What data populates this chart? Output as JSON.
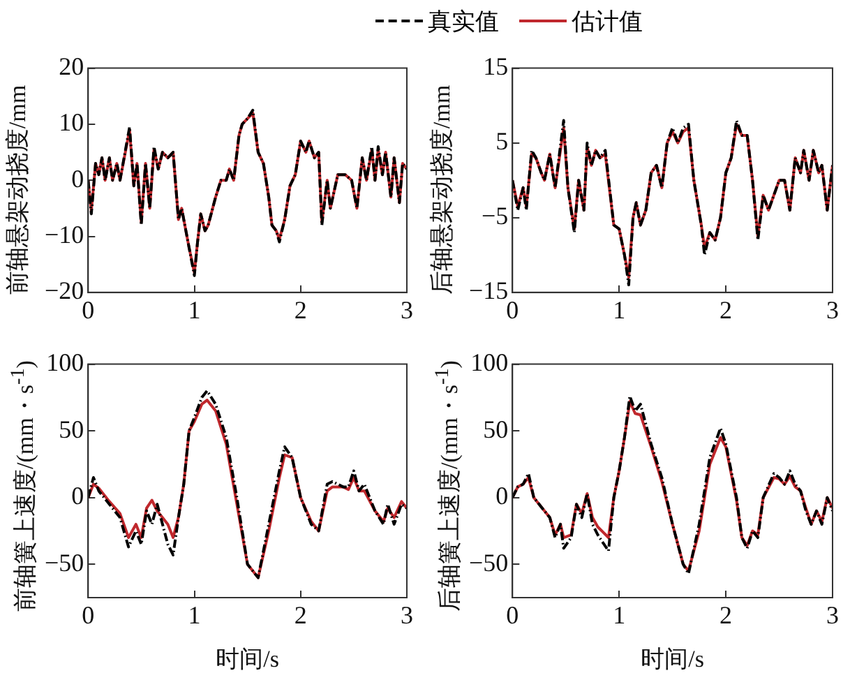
{
  "chart_data": [
    {
      "type": "line",
      "ylabel": "前轴悬架动挠度/mm",
      "xlim": [
        0,
        3
      ],
      "xticks": [
        0,
        1,
        2,
        3
      ],
      "ylim": [
        -20,
        20
      ],
      "yticks": [
        -20,
        -10,
        0,
        10,
        20
      ],
      "grid": false,
      "legend": "top",
      "marker": "none",
      "series": [
        {
          "name": "真实值",
          "color": "#000000",
          "line_style": "dashed",
          "x": [
            0,
            0.03,
            0.07,
            0.1,
            0.13,
            0.16,
            0.2,
            0.23,
            0.27,
            0.3,
            0.39,
            0.43,
            0.46,
            0.5,
            0.54,
            0.58,
            0.62,
            0.66,
            0.7,
            0.75,
            0.8,
            0.85,
            0.88,
            0.95,
            1.0,
            1.03,
            1.06,
            1.1,
            1.13,
            1.2,
            1.25,
            1.3,
            1.33,
            1.37,
            1.42,
            1.45,
            1.5,
            1.55,
            1.6,
            1.65,
            1.7,
            1.73,
            1.77,
            1.8,
            1.85,
            1.9,
            1.95,
            2.0,
            2.05,
            2.08,
            2.13,
            2.17,
            2.2,
            2.25,
            2.28,
            2.35,
            2.42,
            2.48,
            2.53,
            2.58,
            2.62,
            2.67,
            2.7,
            2.73,
            2.77,
            2.8,
            2.85,
            2.88,
            2.93,
            2.96,
            3.0
          ],
          "values": [
            0,
            -6,
            3,
            1,
            4,
            0,
            4,
            0,
            3,
            0,
            9.5,
            -1,
            3,
            -8,
            3,
            -5,
            6,
            2,
            5,
            4,
            5,
            -7,
            -5,
            -12,
            -17,
            -11,
            -6,
            -9,
            -8,
            -3,
            0,
            0,
            2,
            0,
            8,
            10,
            11,
            12.5,
            5,
            3,
            -3,
            -8,
            -9,
            -11,
            -7,
            -1,
            1,
            7,
            5,
            7,
            4,
            5,
            -8,
            0,
            -5,
            1,
            1,
            0,
            -5,
            4,
            0,
            6,
            0,
            6,
            1,
            5,
            -3,
            4,
            -4,
            3,
            2
          ]
        },
        {
          "name": "估计值",
          "color": "#c0282d",
          "line_style": "solid",
          "x": [
            0,
            0.03,
            0.07,
            0.1,
            0.13,
            0.16,
            0.2,
            0.23,
            0.27,
            0.3,
            0.39,
            0.43,
            0.46,
            0.5,
            0.54,
            0.58,
            0.62,
            0.66,
            0.7,
            0.75,
            0.8,
            0.85,
            0.88,
            0.95,
            1.0,
            1.03,
            1.06,
            1.1,
            1.13,
            1.2,
            1.25,
            1.3,
            1.33,
            1.37,
            1.42,
            1.45,
            1.5,
            1.55,
            1.6,
            1.65,
            1.7,
            1.73,
            1.77,
            1.8,
            1.85,
            1.9,
            1.95,
            2.0,
            2.05,
            2.08,
            2.13,
            2.17,
            2.2,
            2.25,
            2.28,
            2.35,
            2.42,
            2.48,
            2.53,
            2.58,
            2.62,
            2.67,
            2.7,
            2.73,
            2.77,
            2.8,
            2.85,
            2.88,
            2.93,
            2.96,
            3.0
          ],
          "values": [
            0,
            -5.5,
            3,
            1,
            4,
            0,
            4,
            0,
            3,
            0,
            9,
            -1,
            3,
            -7.5,
            3,
            -5,
            5.5,
            2,
            5,
            4,
            5,
            -7,
            -5,
            -12,
            -16.5,
            -11,
            -6,
            -9,
            -8,
            -3,
            0,
            0,
            2,
            0,
            8,
            10,
            11,
            12,
            5,
            3,
            -3,
            -8,
            -9,
            -10.5,
            -7,
            -1,
            1,
            7,
            5,
            7,
            4,
            5,
            -7.5,
            0,
            -5,
            1,
            1,
            0,
            -5,
            4,
            0,
            5.5,
            0,
            5.5,
            1,
            5,
            -3,
            4,
            -4,
            3,
            2
          ]
        }
      ]
    },
    {
      "type": "line",
      "ylabel": "后轴悬架动挠度/mm",
      "xlim": [
        0,
        3
      ],
      "xticks": [
        0,
        1,
        2,
        3
      ],
      "ylim": [
        -15,
        15
      ],
      "yticks": [
        -15,
        -5,
        5,
        15
      ],
      "grid": false,
      "marker": "none",
      "series": [
        {
          "color": "#000000",
          "line_style": "dashed",
          "x": [
            0,
            0.05,
            0.1,
            0.13,
            0.18,
            0.22,
            0.27,
            0.3,
            0.35,
            0.4,
            0.48,
            0.52,
            0.58,
            0.62,
            0.67,
            0.7,
            0.74,
            0.78,
            0.82,
            0.87,
            0.95,
            1.0,
            1.05,
            1.09,
            1.13,
            1.16,
            1.2,
            1.25,
            1.3,
            1.35,
            1.4,
            1.45,
            1.5,
            1.55,
            1.6,
            1.65,
            1.7,
            1.77,
            1.8,
            1.85,
            1.9,
            1.95,
            2.0,
            2.05,
            2.1,
            2.15,
            2.2,
            2.25,
            2.3,
            2.35,
            2.4,
            2.5,
            2.55,
            2.6,
            2.65,
            2.7,
            2.73,
            2.78,
            2.82,
            2.87,
            2.9,
            2.95,
            3.0
          ],
          "values": [
            0,
            -4,
            -1,
            -4,
            4,
            3,
            1,
            0,
            3.5,
            -1,
            8,
            -1,
            -7,
            0,
            -4,
            5,
            2,
            4,
            3,
            4,
            -6,
            -6.5,
            -10,
            -14,
            -5,
            -3,
            -6,
            -4,
            1,
            2,
            -1,
            5,
            7,
            5,
            7,
            7.5,
            0,
            -6,
            -10,
            -7,
            -8,
            -5,
            1,
            3,
            8,
            6,
            6,
            0,
            -8,
            -2,
            -4,
            0,
            0,
            -4,
            3,
            1,
            4,
            0,
            4,
            1,
            2,
            -4,
            2
          ]
        },
        {
          "color": "#c0282d",
          "line_style": "solid",
          "x": [
            0,
            0.05,
            0.1,
            0.13,
            0.18,
            0.22,
            0.27,
            0.3,
            0.35,
            0.4,
            0.48,
            0.52,
            0.58,
            0.62,
            0.67,
            0.7,
            0.74,
            0.78,
            0.82,
            0.87,
            0.95,
            1.0,
            1.05,
            1.09,
            1.13,
            1.16,
            1.2,
            1.25,
            1.3,
            1.35,
            1.4,
            1.45,
            1.5,
            1.55,
            1.6,
            1.65,
            1.7,
            1.77,
            1.8,
            1.85,
            1.9,
            1.95,
            2.0,
            2.05,
            2.1,
            2.15,
            2.2,
            2.25,
            2.3,
            2.35,
            2.4,
            2.5,
            2.55,
            2.6,
            2.65,
            2.7,
            2.73,
            2.78,
            2.82,
            2.87,
            2.9,
            2.95,
            3.0
          ],
          "values": [
            0,
            -3.5,
            -1,
            -3.5,
            3.5,
            3,
            1,
            0,
            3.5,
            -1,
            7,
            -1,
            -6.5,
            0,
            -4,
            4.5,
            2,
            4,
            3,
            3.5,
            -6,
            -6.5,
            -10,
            -13,
            -5,
            -3,
            -6,
            -4,
            1,
            2,
            -1,
            5,
            6.5,
            5,
            6.5,
            7,
            0,
            -6,
            -9,
            -7,
            -8,
            -5,
            1,
            3,
            7.5,
            6,
            6,
            0,
            -7.5,
            -2,
            -4,
            0,
            0,
            -4,
            3,
            1,
            4,
            0,
            4,
            1,
            2,
            -4,
            2
          ]
        }
      ]
    },
    {
      "type": "line",
      "xlabel": "时间/s",
      "ylabel": "前轴簧上速度/(mm・s$^{-1}$)",
      "xlim": [
        0,
        3
      ],
      "xticks": [
        0,
        1,
        2,
        3
      ],
      "ylim": [
        -75,
        100
      ],
      "yticks": [
        -50,
        0,
        50,
        100
      ],
      "grid": false,
      "marker": "none",
      "series": [
        {
          "color": "#000000",
          "line_style": "dashed",
          "x": [
            0,
            0.05,
            0.1,
            0.2,
            0.3,
            0.38,
            0.45,
            0.5,
            0.55,
            0.6,
            0.65,
            0.75,
            0.8,
            0.85,
            0.9,
            0.95,
            1.0,
            1.07,
            1.12,
            1.2,
            1.3,
            1.4,
            1.5,
            1.6,
            1.7,
            1.8,
            1.85,
            1.92,
            2.0,
            2.1,
            2.17,
            2.25,
            2.3,
            2.4,
            2.45,
            2.5,
            2.55,
            2.6,
            2.7,
            2.78,
            2.82,
            2.88,
            2.95,
            3.0
          ],
          "values": [
            0,
            15,
            5,
            -5,
            -15,
            -37,
            -25,
            -35,
            -10,
            -20,
            -5,
            -35,
            -43,
            -15,
            10,
            50,
            60,
            75,
            80,
            70,
            45,
            0,
            -50,
            -60,
            -20,
            20,
            38,
            30,
            0,
            -20,
            -25,
            10,
            12,
            8,
            8,
            20,
            5,
            10,
            -10,
            -20,
            -5,
            -20,
            -5,
            -8
          ]
        },
        {
          "color": "#c0282d",
          "line_style": "solid",
          "x": [
            0,
            0.05,
            0.1,
            0.2,
            0.3,
            0.38,
            0.45,
            0.5,
            0.55,
            0.6,
            0.65,
            0.75,
            0.8,
            0.85,
            0.9,
            0.95,
            1.0,
            1.07,
            1.12,
            1.2,
            1.3,
            1.4,
            1.5,
            1.6,
            1.7,
            1.8,
            1.85,
            1.92,
            2.0,
            2.1,
            2.17,
            2.25,
            2.3,
            2.4,
            2.45,
            2.5,
            2.55,
            2.6,
            2.7,
            2.78,
            2.82,
            2.88,
            2.95,
            3.0
          ],
          "values": [
            0,
            10,
            7,
            -3,
            -12,
            -30,
            -20,
            -30,
            -8,
            -2,
            -10,
            -20,
            -30,
            -15,
            10,
            50,
            57,
            70,
            73,
            65,
            40,
            -5,
            -50,
            -60,
            -25,
            15,
            32,
            30,
            0,
            -18,
            -25,
            5,
            8,
            8,
            6,
            15,
            5,
            5,
            -10,
            -18,
            -8,
            -15,
            -3,
            -8
          ]
        }
      ]
    },
    {
      "type": "line",
      "xlabel": "时间/s",
      "ylabel": "后轴簧上速度/(mm・s$^{-1}$)",
      "xlim": [
        0,
        3
      ],
      "xticks": [
        0,
        1,
        2,
        3
      ],
      "ylim": [
        -75,
        100
      ],
      "yticks": [
        -50,
        0,
        50,
        100
      ],
      "grid": false,
      "marker": "none",
      "series": [
        {
          "color": "#000000",
          "line_style": "dashed",
          "x": [
            0,
            0.05,
            0.1,
            0.15,
            0.2,
            0.3,
            0.35,
            0.4,
            0.45,
            0.48,
            0.55,
            0.6,
            0.65,
            0.7,
            0.75,
            0.8,
            0.9,
            0.95,
            1.0,
            1.05,
            1.1,
            1.15,
            1.2,
            1.3,
            1.4,
            1.5,
            1.6,
            1.65,
            1.75,
            1.85,
            1.95,
            2.0,
            2.1,
            2.15,
            2.2,
            2.25,
            2.3,
            2.35,
            2.45,
            2.5,
            2.55,
            2.6,
            2.65,
            2.7,
            2.75,
            2.8,
            2.85,
            2.9,
            2.95,
            3.0
          ],
          "values": [
            0,
            8,
            10,
            18,
            0,
            -10,
            -15,
            -30,
            -20,
            -38,
            -30,
            -5,
            -15,
            3,
            -20,
            -28,
            -40,
            0,
            20,
            45,
            76,
            65,
            70,
            40,
            15,
            -20,
            -50,
            -57,
            -20,
            30,
            52,
            40,
            0,
            -30,
            -38,
            -25,
            -30,
            0,
            18,
            15,
            10,
            20,
            10,
            5,
            -10,
            -20,
            -10,
            -20,
            0,
            -10
          ]
        },
        {
          "color": "#c0282d",
          "line_style": "solid",
          "x": [
            0,
            0.05,
            0.1,
            0.15,
            0.2,
            0.3,
            0.35,
            0.4,
            0.45,
            0.48,
            0.55,
            0.6,
            0.65,
            0.7,
            0.75,
            0.8,
            0.9,
            0.95,
            1.0,
            1.05,
            1.1,
            1.15,
            1.2,
            1.3,
            1.4,
            1.5,
            1.6,
            1.65,
            1.75,
            1.85,
            1.95,
            2.0,
            2.1,
            2.15,
            2.2,
            2.25,
            2.3,
            2.35,
            2.45,
            2.5,
            2.55,
            2.6,
            2.65,
            2.7,
            2.75,
            2.8,
            2.85,
            2.9,
            2.95,
            3.0
          ],
          "values": [
            0,
            8,
            10,
            15,
            0,
            -10,
            -15,
            -28,
            -20,
            -30,
            -28,
            -5,
            -12,
            3,
            -15,
            -22,
            -30,
            0,
            20,
            45,
            72,
            63,
            62,
            38,
            12,
            -20,
            -50,
            -55,
            -25,
            25,
            45,
            38,
            -2,
            -30,
            -36,
            -25,
            -28,
            0,
            15,
            14,
            10,
            16,
            8,
            5,
            -8,
            -20,
            -10,
            -18,
            0,
            -8
          ]
        }
      ]
    }
  ]
}
